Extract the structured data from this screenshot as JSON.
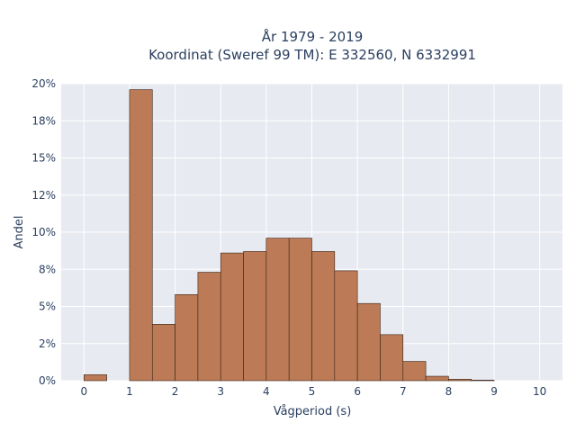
{
  "chart_data": {
    "type": "bar",
    "title_line1": "År 1979 - 2019",
    "title_line2": "Koordinat (Sweref 99 TM): E 332560, N 6332991",
    "xlabel": "Vågperiod (s)",
    "ylabel": "Andel",
    "bin_width": 0.5,
    "xlim": [
      -0.5,
      10.5
    ],
    "ylim": [
      0,
      0.2
    ],
    "x_ticks": [
      0,
      1,
      2,
      3,
      4,
      5,
      6,
      7,
      8,
      9,
      10
    ],
    "x_tick_labels": [
      "0",
      "1",
      "2",
      "3",
      "4",
      "5",
      "6",
      "7",
      "8",
      "9",
      "10"
    ],
    "y_ticks": [
      0,
      0.025,
      0.05,
      0.075,
      0.1,
      0.125,
      0.15,
      0.175,
      0.2
    ],
    "y_tick_labels": [
      "0%",
      "2%",
      "5%",
      "8%",
      "10%",
      "12%",
      "15%",
      "18%",
      "20%"
    ],
    "bins": [
      {
        "x0": 0.0,
        "x1": 0.5,
        "value": 0.004
      },
      {
        "x0": 1.0,
        "x1": 1.5,
        "value": 0.196
      },
      {
        "x0": 1.5,
        "x1": 2.0,
        "value": 0.038
      },
      {
        "x0": 2.0,
        "x1": 2.5,
        "value": 0.058
      },
      {
        "x0": 2.5,
        "x1": 3.0,
        "value": 0.073
      },
      {
        "x0": 3.0,
        "x1": 3.5,
        "value": 0.086
      },
      {
        "x0": 3.5,
        "x1": 4.0,
        "value": 0.087
      },
      {
        "x0": 4.0,
        "x1": 4.5,
        "value": 0.096
      },
      {
        "x0": 4.5,
        "x1": 5.0,
        "value": 0.096
      },
      {
        "x0": 5.0,
        "x1": 5.5,
        "value": 0.087
      },
      {
        "x0": 5.5,
        "x1": 6.0,
        "value": 0.074
      },
      {
        "x0": 6.0,
        "x1": 6.5,
        "value": 0.052
      },
      {
        "x0": 6.5,
        "x1": 7.0,
        "value": 0.031
      },
      {
        "x0": 7.0,
        "x1": 7.5,
        "value": 0.013
      },
      {
        "x0": 7.5,
        "x1": 8.0,
        "value": 0.003
      },
      {
        "x0": 8.0,
        "x1": 8.5,
        "value": 0.001
      },
      {
        "x0": 8.5,
        "x1": 9.0,
        "value": 0.0004
      }
    ],
    "grid": true,
    "bar_color": "#bc7b56",
    "bar_edge_color": "#3a2418",
    "plot_bg": "#e8eaf1",
    "grid_color": "#ffffff"
  }
}
